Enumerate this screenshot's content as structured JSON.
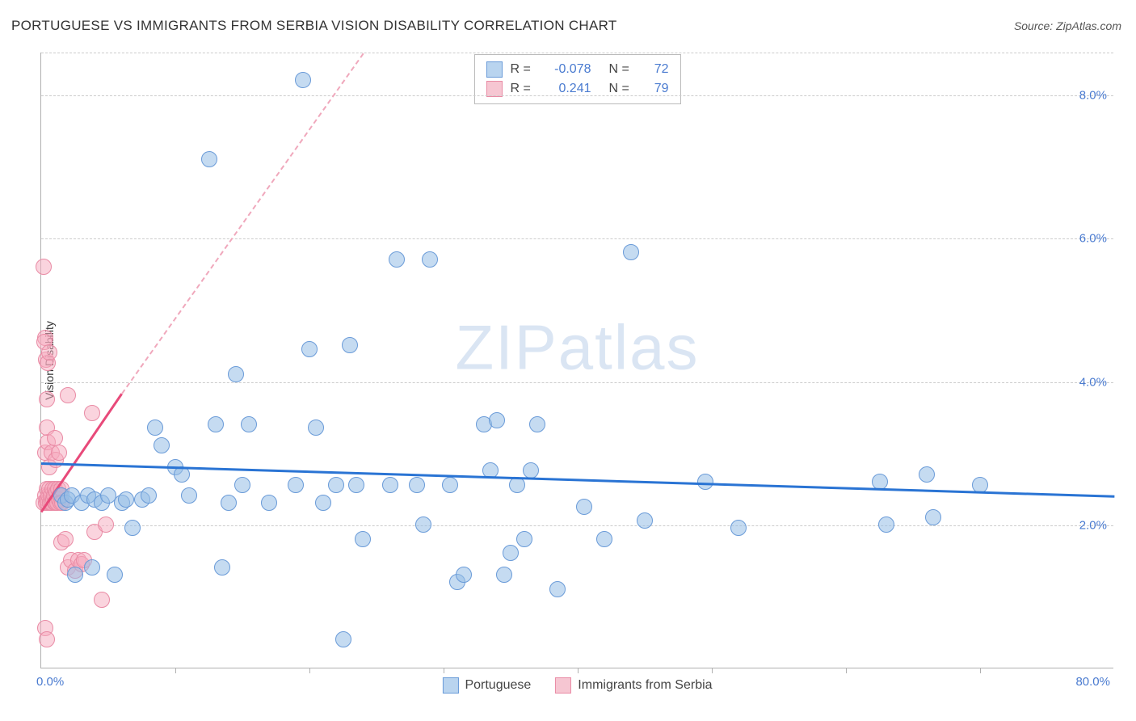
{
  "title": "PORTUGUESE VS IMMIGRANTS FROM SERBIA VISION DISABILITY CORRELATION CHART",
  "source": "Source: ZipAtlas.com",
  "ylabel": "Vision Disability",
  "watermark_parts": [
    "ZIP",
    "atlas"
  ],
  "chart": {
    "type": "scatter",
    "xlim": [
      0,
      80
    ],
    "ylim": [
      0,
      8.6
    ],
    "xtick_labels": [
      {
        "x": 0,
        "text": "0.0%"
      },
      {
        "x": 80,
        "text": "80.0%"
      }
    ],
    "xtick_marks": [
      10,
      20,
      30,
      40,
      50,
      60,
      70
    ],
    "ytick_labels": [
      {
        "y": 2.0,
        "text": "2.0%"
      },
      {
        "y": 4.0,
        "text": "4.0%"
      },
      {
        "y": 6.0,
        "text": "6.0%"
      },
      {
        "y": 8.0,
        "text": "8.0%"
      }
    ],
    "gridlines_y": [
      2.0,
      4.0,
      6.0,
      8.0,
      8.6
    ],
    "background_color": "#ffffff",
    "grid_color": "#cccccc",
    "axis_color": "#b0b0b0",
    "tick_label_color": "#4a7bd0",
    "marker_radius": 10,
    "series": [
      {
        "name": "Portuguese",
        "color_fill": "rgba(150,190,230,0.55)",
        "color_stroke": "#6a9bd8",
        "swatch_fill": "#b9d4ef",
        "swatch_stroke": "#6a9bd8",
        "R": "-0.078",
        "N": "72",
        "trend": {
          "x1": 0,
          "y1": 2.88,
          "x2": 80,
          "y2": 2.42,
          "color": "#2a74d4",
          "width": 3,
          "dashed": false
        },
        "points": [
          [
            1.5,
            2.4
          ],
          [
            1.8,
            2.3
          ],
          [
            2.0,
            2.35
          ],
          [
            2.3,
            2.4
          ],
          [
            2.5,
            1.3
          ],
          [
            3.0,
            2.3
          ],
          [
            3.5,
            2.4
          ],
          [
            3.8,
            1.4
          ],
          [
            4.0,
            2.35
          ],
          [
            4.5,
            2.3
          ],
          [
            5.0,
            2.4
          ],
          [
            5.5,
            1.3
          ],
          [
            6.0,
            2.3
          ],
          [
            6.3,
            2.35
          ],
          [
            6.8,
            1.95
          ],
          [
            7.5,
            2.35
          ],
          [
            8.0,
            2.4
          ],
          [
            8.5,
            3.35
          ],
          [
            9.0,
            3.1
          ],
          [
            10.0,
            2.8
          ],
          [
            10.5,
            2.7
          ],
          [
            11.0,
            2.4
          ],
          [
            12.5,
            7.1
          ],
          [
            13.0,
            3.4
          ],
          [
            13.5,
            1.4
          ],
          [
            14.0,
            2.3
          ],
          [
            14.5,
            4.1
          ],
          [
            15.0,
            2.55
          ],
          [
            15.5,
            3.4
          ],
          [
            17.0,
            2.3
          ],
          [
            19.0,
            2.55
          ],
          [
            19.5,
            8.2
          ],
          [
            20.0,
            4.45
          ],
          [
            20.5,
            3.35
          ],
          [
            21.0,
            2.3
          ],
          [
            22.0,
            2.55
          ],
          [
            22.5,
            0.4
          ],
          [
            23.0,
            4.5
          ],
          [
            23.5,
            2.55
          ],
          [
            24.0,
            1.8
          ],
          [
            26.0,
            2.55
          ],
          [
            26.5,
            5.7
          ],
          [
            28.0,
            2.55
          ],
          [
            28.5,
            2.0
          ],
          [
            29.0,
            5.7
          ],
          [
            30.5,
            2.55
          ],
          [
            31.0,
            1.2
          ],
          [
            31.5,
            1.3
          ],
          [
            33.0,
            3.4
          ],
          [
            33.5,
            2.75
          ],
          [
            34.0,
            3.45
          ],
          [
            34.5,
            1.3
          ],
          [
            35.0,
            1.6
          ],
          [
            35.5,
            2.55
          ],
          [
            36.0,
            1.8
          ],
          [
            36.5,
            2.75
          ],
          [
            37.0,
            3.4
          ],
          [
            38.5,
            1.1
          ],
          [
            40.5,
            2.25
          ],
          [
            42.0,
            1.8
          ],
          [
            44.0,
            5.8
          ],
          [
            45.0,
            2.05
          ],
          [
            49.5,
            2.6
          ],
          [
            52.0,
            1.95
          ],
          [
            62.5,
            2.6
          ],
          [
            63.0,
            2.0
          ],
          [
            66.0,
            2.7
          ],
          [
            66.5,
            2.1
          ],
          [
            70.0,
            2.55
          ]
        ]
      },
      {
        "name": "Immigrants from Serbia",
        "color_fill": "rgba(245,170,190,0.5)",
        "color_stroke": "#e98ba5",
        "swatch_fill": "#f6c6d2",
        "swatch_stroke": "#e98ba5",
        "R": "0.241",
        "N": "79",
        "trend_solid": {
          "x1": 0,
          "y1": 2.2,
          "x2": 6,
          "y2": 3.85,
          "color": "#e84a7a",
          "width": 3
        },
        "trend_dashed": {
          "x1": 6,
          "y1": 3.85,
          "x2": 24,
          "y2": 8.6,
          "color": "#f0a8bc",
          "width": 2
        },
        "points": [
          [
            0.2,
            2.3
          ],
          [
            0.3,
            2.4
          ],
          [
            0.35,
            2.3
          ],
          [
            0.4,
            2.5
          ],
          [
            0.45,
            2.35
          ],
          [
            0.5,
            2.3
          ],
          [
            0.55,
            2.4
          ],
          [
            0.6,
            2.5
          ],
          [
            0.65,
            2.3
          ],
          [
            0.7,
            2.4
          ],
          [
            0.8,
            2.3
          ],
          [
            0.85,
            2.5
          ],
          [
            0.9,
            2.35
          ],
          [
            0.95,
            2.4
          ],
          [
            1.0,
            2.3
          ],
          [
            1.05,
            2.5
          ],
          [
            1.1,
            2.3
          ],
          [
            1.15,
            2.45
          ],
          [
            1.2,
            2.3
          ],
          [
            1.25,
            2.5
          ],
          [
            1.3,
            2.35
          ],
          [
            1.4,
            2.4
          ],
          [
            1.45,
            2.3
          ],
          [
            1.5,
            2.5
          ],
          [
            1.55,
            2.3
          ],
          [
            0.3,
            3.0
          ],
          [
            0.5,
            3.15
          ],
          [
            0.4,
            3.35
          ],
          [
            0.6,
            2.8
          ],
          [
            0.8,
            3.0
          ],
          [
            1.0,
            3.2
          ],
          [
            1.1,
            2.9
          ],
          [
            1.3,
            3.0
          ],
          [
            0.2,
            5.6
          ],
          [
            0.3,
            4.6
          ],
          [
            0.25,
            4.55
          ],
          [
            0.35,
            4.3
          ],
          [
            0.4,
            3.75
          ],
          [
            0.5,
            4.25
          ],
          [
            0.6,
            4.4
          ],
          [
            1.5,
            1.75
          ],
          [
            1.8,
            1.8
          ],
          [
            2.0,
            1.4
          ],
          [
            2.2,
            1.5
          ],
          [
            2.5,
            1.35
          ],
          [
            2.8,
            1.5
          ],
          [
            3.0,
            1.45
          ],
          [
            3.2,
            1.5
          ],
          [
            2.0,
            3.8
          ],
          [
            3.8,
            3.55
          ],
          [
            4.0,
            1.9
          ],
          [
            4.5,
            0.95
          ],
          [
            4.8,
            2.0
          ],
          [
            0.3,
            0.55
          ],
          [
            0.4,
            0.4
          ]
        ]
      }
    ]
  },
  "top_legend": {
    "rows": [
      {
        "series_idx": 0,
        "R_label": "R =",
        "N_label": "N ="
      },
      {
        "series_idx": 1,
        "R_label": "R =",
        "N_label": "N ="
      }
    ]
  },
  "bottom_legend": {
    "items": [
      {
        "series_idx": 0
      },
      {
        "series_idx": 1
      }
    ]
  }
}
